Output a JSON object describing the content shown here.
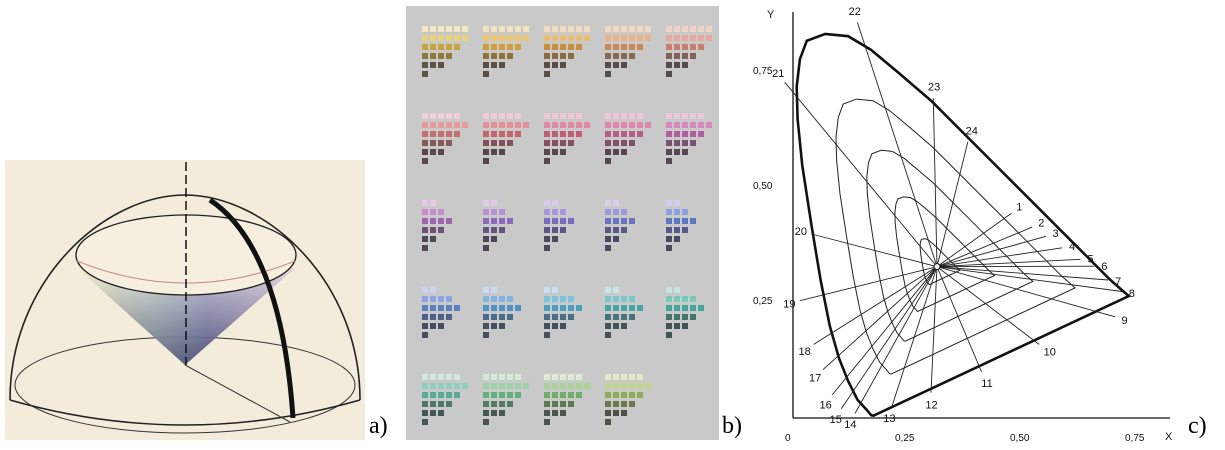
{
  "captions": {
    "a": "a)",
    "b": "b)",
    "c": "c)"
  },
  "panel_b": {
    "background": "#c9c9c9",
    "rows": [
      [
        [
          "#f2e6c2",
          "#e9d27a",
          "#c9a43e",
          "#8e7a3c",
          "#5c5446"
        ],
        [
          "#f2e2bf",
          "#ecc76a",
          "#cf9d3b",
          "#8c733c",
          "#5a5044"
        ],
        [
          "#f2dcbf",
          "#ebbe72",
          "#cc8e3f",
          "#8b6c44",
          "#5a4d46"
        ],
        [
          "#f2d7c0",
          "#eab288",
          "#c98a55",
          "#876a4f",
          "#594c48"
        ],
        [
          "#f2d2c6",
          "#e9a69a",
          "#c8806c",
          "#856257",
          "#58494a"
        ]
      ],
      [
        [
          "#f2cfd2",
          "#e69a9a",
          "#c8706e",
          "#855a59",
          "#58494c"
        ],
        [
          "#f1ccd2",
          "#e48e98",
          "#c6646e",
          "#835359",
          "#57474c"
        ],
        [
          "#f1c9d4",
          "#e2879d",
          "#c25e76",
          "#82515d",
          "#57474e"
        ],
        [
          "#f0c8da",
          "#de86ad",
          "#bb5c88",
          "#7f5068",
          "#564652"
        ],
        [
          "#efc8e0",
          "#d888bd",
          "#b35f9d",
          "#7b5173",
          "#554756"
        ]
      ],
      [
        [
          "#e9c8e6",
          "#c98cce",
          "#9f66b0",
          "#6f5279",
          "#514758"
        ],
        [
          "#e2c9ea",
          "#b990d6",
          "#8c68b8",
          "#655380",
          "#4e475c"
        ],
        [
          "#ddcbee",
          "#aa95dc",
          "#7a6dbe",
          "#5e5486",
          "#4b4860"
        ],
        [
          "#d7cdef",
          "#9c9ade",
          "#6b72c0",
          "#585888",
          "#4a4a62"
        ],
        [
          "#d1cff0",
          "#8e9fe0",
          "#5c77c2",
          "#52598a",
          "#484b63"
        ]
      ],
      [
        [
          "#cdd2f0",
          "#8aa4e0",
          "#5a80c4",
          "#50608c",
          "#474d64"
        ],
        [
          "#c8dbf0",
          "#82b4e2",
          "#4f92c4",
          "#4b6a8a",
          "#454f62"
        ],
        [
          "#c6e2ee",
          "#7cc1dc",
          "#4aa0bb",
          "#4a7284",
          "#44525e"
        ],
        [
          "#c5e5e8",
          "#78c6cc",
          "#46a6a8",
          "#477478",
          "#43535a"
        ],
        [
          "#c5e6e0",
          "#76c8bb",
          "#43a897",
          "#45766d",
          "#435456"
        ]
      ],
      [
        [
          "#cfe9e2",
          "#8fd0bc",
          "#55ad93",
          "#4e7a6b",
          "#445655"
        ],
        [
          "#d4ead8",
          "#9ad3a8",
          "#62b07e",
          "#547c60",
          "#465650"
        ],
        [
          "#dbead0",
          "#a9d595",
          "#72b069",
          "#5b7b55",
          "#48564b"
        ],
        [
          "#e3e9c9",
          "#bfd686",
          "#8cae58",
          "#667a4c",
          "#4b5447"
        ]
      ]
    ]
  },
  "panel_c": {
    "y_axis_label": "Y",
    "x_axis_label": "X",
    "y_ticks": [
      "0,75",
      "0,50",
      "0,25"
    ],
    "x_ticks": [
      "0",
      "0,25",
      "0,50",
      "0,75"
    ],
    "boundary_labels": [
      {
        "t": "1",
        "x": 0.475,
        "y": 0.445
      },
      {
        "t": "2",
        "x": 0.52,
        "y": 0.415
      },
      {
        "t": "3",
        "x": 0.55,
        "y": 0.395
      },
      {
        "t": "4",
        "x": 0.585,
        "y": 0.37
      },
      {
        "t": "5",
        "x": 0.625,
        "y": 0.345
      },
      {
        "t": "6",
        "x": 0.655,
        "y": 0.33
      },
      {
        "t": "7",
        "x": 0.685,
        "y": 0.3
      },
      {
        "t": "8",
        "x": 0.715,
        "y": 0.275
      },
      {
        "t": "9",
        "x": 0.7,
        "y": 0.22
      },
      {
        "t": "10",
        "x": 0.535,
        "y": 0.16
      },
      {
        "t": "11",
        "x": 0.41,
        "y": 0.1
      },
      {
        "t": "12",
        "x": 0.3,
        "y": 0.055
      },
      {
        "t": "13",
        "x": 0.215,
        "y": 0.025
      },
      {
        "t": "14",
        "x": 0.135,
        "y": 0.01
      },
      {
        "t": "15",
        "x": 0.105,
        "y": 0.02
      },
      {
        "t": "16",
        "x": 0.085,
        "y": 0.05
      },
      {
        "t": "17",
        "x": 0.065,
        "y": 0.105
      },
      {
        "t": "18",
        "x": 0.045,
        "y": 0.16
      },
      {
        "t": "19",
        "x": 0.015,
        "y": 0.255
      },
      {
        "t": "20",
        "x": 0.04,
        "y": 0.4
      },
      {
        "t": "21",
        "x": -0.018,
        "y": 0.73
      },
      {
        "t": "22",
        "x": 0.14,
        "y": 0.86
      },
      {
        "t": "23",
        "x": 0.305,
        "y": 0.695
      },
      {
        "t": "24",
        "x": 0.38,
        "y": 0.6
      }
    ]
  },
  "colors": {
    "ink": "#111111",
    "panel_a_bg": "#f3ecdb",
    "panel_b_bg": "#c9c9c9"
  }
}
